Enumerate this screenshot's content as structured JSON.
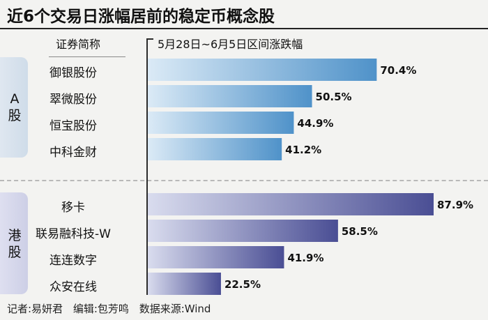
{
  "title": "近6个交易日涨幅居前的稳定币概念股",
  "header": {
    "name_col": "证券简称",
    "value_col": "5月28日~6月5日区间涨跌幅"
  },
  "groups": [
    {
      "label_chars": [
        "A",
        "股"
      ]
    },
    {
      "label_chars": [
        "港",
        "股"
      ]
    }
  ],
  "chart_data": {
    "type": "bar",
    "orientation": "horizontal",
    "title": "近6个交易日涨幅居前的稳定币概念股",
    "value_label": "5月28日~6月5日区间涨跌幅",
    "unit": "%",
    "xlim": [
      0,
      90
    ],
    "series": [
      {
        "group": "A股",
        "categories": [
          "御银股份",
          "翠微股份",
          "恒宝股份",
          "中科金财"
        ],
        "values": [
          70.4,
          50.5,
          44.9,
          41.2
        ],
        "labels": [
          "70.4%",
          "50.5%",
          "44.9%",
          "41.2%"
        ],
        "color": "#4f92c9"
      },
      {
        "group": "港股",
        "categories": [
          "移卡",
          "联易融科技-W",
          "连连数字",
          "众安在线"
        ],
        "values": [
          87.9,
          58.5,
          41.9,
          22.5
        ],
        "labels": [
          "87.9%",
          "58.5%",
          "41.9%",
          "22.5%"
        ],
        "color": "#4a4e94"
      }
    ]
  },
  "footer": {
    "author": "记者:易妍君",
    "editor": "编辑:包芳鸣",
    "source": "数据来源:Wind"
  }
}
